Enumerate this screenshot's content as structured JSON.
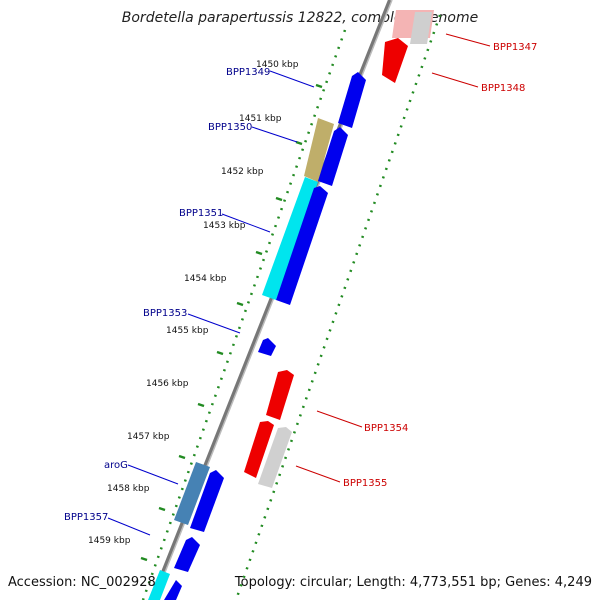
{
  "title": "Bordetella parapertussis 12822, complete genome",
  "footer": {
    "accession": "Accession: NC_002928",
    "summary": "Topology: circular; Length: 4,773,551 bp; Genes: 4,249"
  },
  "colors": {
    "forward_gene": "#0000ee",
    "reverse_gene": "#ee0000",
    "pseudo_gene": "#cccccc",
    "highlight_cyan": "#00e5ee",
    "highlight_olive": "#bfae6a",
    "highlight_steel": "#4682b4",
    "tick_green": "#228b22",
    "backbone": "#888888"
  },
  "ticks": [
    "1450 kbp",
    "1451 kbp",
    "1452 kbp",
    "1453 kbp",
    "1454 kbp",
    "1455 kbp",
    "1456 kbp",
    "1457 kbp",
    "1458 kbp",
    "1459 kbp"
  ],
  "forward_labels": [
    "BPP1349",
    "BPP1350",
    "BPP1351",
    "BPP1353",
    "aroG",
    "BPP1357"
  ],
  "reverse_labels": [
    "BPP1347",
    "BPP1348",
    "BPP1354",
    "BPP1355"
  ]
}
